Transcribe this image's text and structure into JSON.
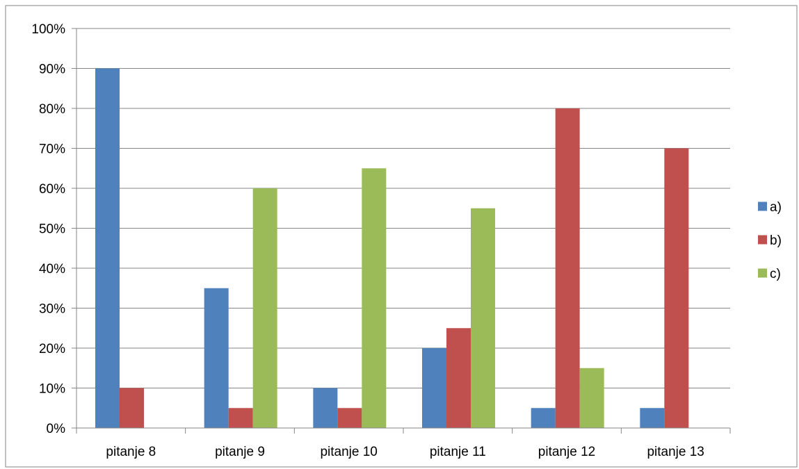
{
  "chart_data": {
    "type": "bar",
    "title": "",
    "xlabel": "",
    "ylabel": "",
    "categories": [
      "pitanje 8",
      "pitanje 9",
      "pitanje 10",
      "pitanje 11",
      "pitanje 12",
      "pitanje 13"
    ],
    "series": [
      {
        "name": "a)",
        "color": "#4f81bd",
        "values": [
          90,
          35,
          10,
          20,
          5,
          5
        ]
      },
      {
        "name": "b)",
        "color": "#c0504d",
        "values": [
          10,
          5,
          5,
          25,
          80,
          70
        ]
      },
      {
        "name": "c)",
        "color": "#9bbb59",
        "values": [
          0,
          60,
          65,
          55,
          15,
          0
        ]
      }
    ],
    "ylim": [
      0,
      100
    ],
    "y_ticks": [
      "0%",
      "10%",
      "20%",
      "30%",
      "40%",
      "50%",
      "60%",
      "70%",
      "80%",
      "90%",
      "100%"
    ],
    "grid": true,
    "legend_position": "right",
    "colors": {
      "gridline": "#868686",
      "axis": "#868686",
      "border": "#868686"
    }
  }
}
